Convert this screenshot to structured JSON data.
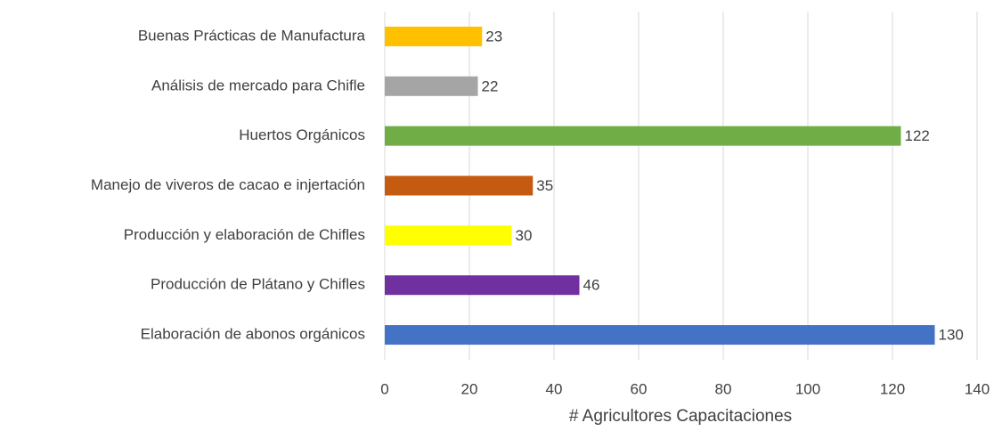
{
  "chart_data": {
    "type": "bar",
    "orientation": "horizontal",
    "categories": [
      "Buenas Prácticas de Manufactura",
      "Análisis de mercado para Chifle",
      "Huertos Orgánicos",
      "Manejo de viveros de cacao e injertación",
      "Producción y elaboración de Chifles",
      "Producción de Plátano y Chifles",
      "Elaboración de abonos orgánicos"
    ],
    "values": [
      23,
      22,
      122,
      35,
      30,
      46,
      130
    ],
    "colors": [
      "#ffc000",
      "#a5a5a5",
      "#70ad47",
      "#c55a11",
      "#ffff00",
      "#7030a0",
      "#4472c4"
    ],
    "x_label": "# Agricultores Capacitaciones",
    "xlim": [
      0,
      140
    ],
    "xticks": [
      0,
      20,
      40,
      60,
      80,
      100,
      120,
      140
    ],
    "grid": true
  }
}
